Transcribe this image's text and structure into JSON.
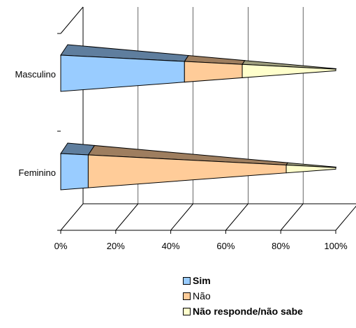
{
  "chart_data": {
    "type": "bar",
    "orientation": "horizontal",
    "stacked": true,
    "stack_percent": true,
    "shape": "3d-cone",
    "categories": [
      "Masculino",
      "Feminino"
    ],
    "series": [
      {
        "name": "Sim",
        "values": [
          45,
          10
        ],
        "color": "#99ccff",
        "label_bold": true
      },
      {
        "name": "Não",
        "values": [
          21,
          72
        ],
        "color": "#ffcc99",
        "label_bold": false
      },
      {
        "name": "Não responde/não sabe",
        "values": [
          34,
          18
        ],
        "color": "#ffffcc",
        "label_bold": true
      }
    ],
    "x_ticks": [
      "0%",
      "20%",
      "40%",
      "60%",
      "80%",
      "100%"
    ],
    "xlim": [
      0,
      100
    ],
    "grid": true,
    "legend_position": "bottom"
  }
}
